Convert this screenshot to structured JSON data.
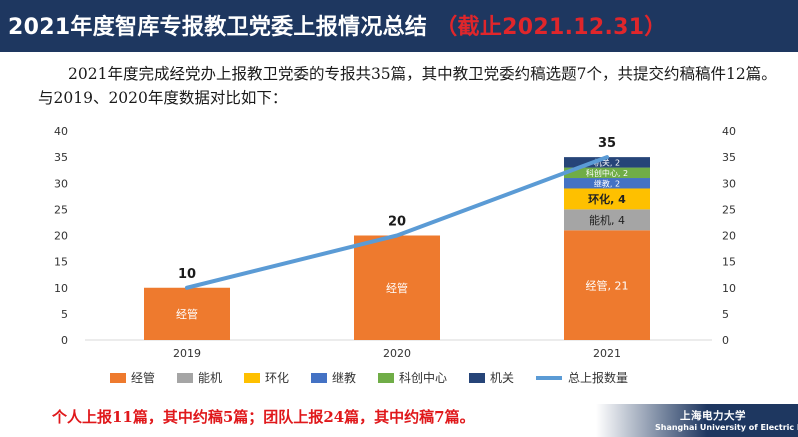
{
  "header": {
    "title": "2021年度智库专报教卫党委上报情况总结",
    "subtitle": "（截止2021.12.31）"
  },
  "intro_text": "2021年度完成经党办上报教卫党委的专报共35篇，其中教卫党委约稿选题7个，共提交约稿稿件12篇。与2019、2020年度数据对比如下：",
  "bottom_note": "个人上报11篇，其中约稿5篇；团队上报24篇，其中约稿7篇。",
  "logo": {
    "cn": "上海电力大学",
    "en": "Shanghai University of Electric Power"
  },
  "chart_data": {
    "type": "bar",
    "stacked": true,
    "categories": [
      "2019",
      "2020",
      "2021"
    ],
    "series": [
      {
        "name": "经管",
        "color": "#ee7a2e",
        "values": [
          10,
          20,
          21
        ],
        "labels": [
          "经管",
          "经管",
          "经管, 21"
        ]
      },
      {
        "name": "能机",
        "color": "#a5a5a5",
        "values": [
          0,
          0,
          4
        ],
        "labels": [
          "",
          "",
          "能机, 4"
        ]
      },
      {
        "name": "环化",
        "color": "#fec000",
        "values": [
          0,
          0,
          4
        ],
        "labels": [
          "",
          "",
          "环化, 4"
        ]
      },
      {
        "name": "继教",
        "color": "#4472c4",
        "values": [
          0,
          0,
          2
        ],
        "labels": [
          "",
          "",
          "继教, 2"
        ]
      },
      {
        "name": "科创中心",
        "color": "#70ad47",
        "values": [
          0,
          0,
          2
        ],
        "labels": [
          "",
          "",
          "科创中心, 2"
        ]
      },
      {
        "name": "机关",
        "color": "#264478",
        "values": [
          0,
          0,
          2
        ],
        "labels": [
          "",
          "",
          "机关, 2"
        ]
      }
    ],
    "line_series": {
      "name": "总上报数量",
      "color": "#5b9bd5",
      "values": [
        10,
        20,
        35
      ]
    },
    "totals_labels": [
      "10",
      "20",
      "35"
    ],
    "ylim": [
      0,
      40
    ],
    "yticks": [
      0,
      5,
      10,
      15,
      20,
      25,
      30,
      35,
      40
    ],
    "secondary_ylim": [
      0,
      40
    ],
    "legend_position": "bottom",
    "grid": false
  }
}
